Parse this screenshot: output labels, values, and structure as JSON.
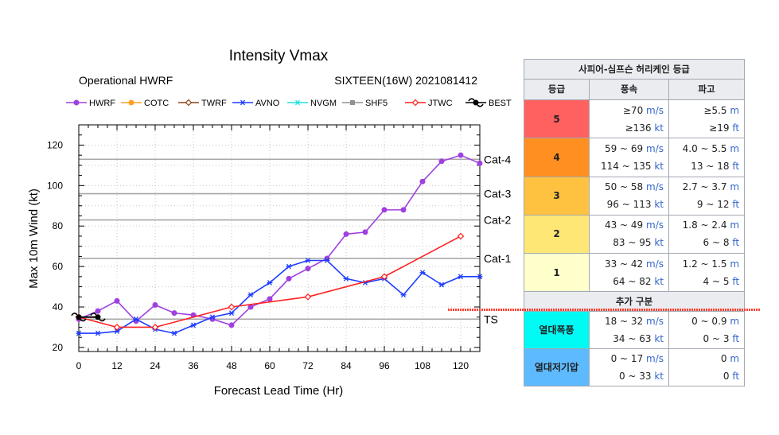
{
  "chart_data": {
    "type": "line",
    "title": "Intensity Vmax",
    "subtitle_left": "Operational HWRF",
    "subtitle_right": "SIXTEEN(16W) 2021081412",
    "xlabel": "Forecast Lead Time (Hr)",
    "ylabel": "Max 10m Wind (kt)",
    "xlim": [
      0,
      126
    ],
    "ylim": [
      18,
      130
    ],
    "xticks": [
      0,
      12,
      24,
      36,
      48,
      60,
      72,
      84,
      96,
      108,
      120
    ],
    "yticks": [
      20,
      40,
      60,
      80,
      100,
      120
    ],
    "thresholds": [
      {
        "label": "TS",
        "value": 34
      },
      {
        "label": "Cat-1",
        "value": 64
      },
      {
        "label": "Cat-2",
        "value": 83
      },
      {
        "label": "Cat-3",
        "value": 96
      },
      {
        "label": "Cat-4",
        "value": 113
      }
    ],
    "legend": [
      {
        "name": "HWRF",
        "color": "#a040e0",
        "marker": "circle"
      },
      {
        "name": "COTC",
        "color": "#ffa020",
        "marker": "circle"
      },
      {
        "name": "TWRF",
        "color": "#8b4513",
        "marker": "diamond"
      },
      {
        "name": "AVNO",
        "color": "#1e3cff",
        "marker": "asterisk"
      },
      {
        "name": "NVGM",
        "color": "#20e0e0",
        "marker": "asterisk"
      },
      {
        "name": "SHF5",
        "color": "#909090",
        "marker": "square"
      },
      {
        "name": "JTWC",
        "color": "#ff2020",
        "marker": "diamond"
      },
      {
        "name": "BEST",
        "color": "#000000",
        "marker": "hurricane"
      }
    ],
    "series": [
      {
        "name": "HWRF",
        "color": "#a040e0",
        "marker": "circle",
        "x": [
          0,
          6,
          12,
          18,
          24,
          30,
          36,
          42,
          48,
          54,
          60,
          66,
          72,
          78,
          84,
          90,
          96,
          102,
          108,
          114,
          120,
          126
        ],
        "y": [
          34,
          38,
          43,
          33,
          41,
          37,
          36,
          34,
          31,
          40,
          44,
          54,
          59,
          64,
          76,
          77,
          88,
          88,
          102,
          112,
          115,
          111
        ]
      },
      {
        "name": "AVNO",
        "color": "#1e3cff",
        "marker": "asterisk",
        "x": [
          0,
          6,
          12,
          18,
          24,
          30,
          36,
          42,
          48,
          54,
          60,
          66,
          72,
          78,
          84,
          90,
          96,
          102,
          108,
          114,
          120,
          126
        ],
        "y": [
          27,
          27,
          28,
          34,
          29,
          27,
          31,
          35,
          37,
          46,
          52,
          60,
          63,
          63,
          54,
          52,
          54,
          46,
          57,
          51,
          55,
          55
        ]
      },
      {
        "name": "JTWC",
        "color": "#ff2020",
        "marker": "diamond",
        "x": [
          0,
          12,
          24,
          48,
          72,
          96,
          120
        ],
        "y": [
          35,
          30,
          30,
          40,
          45,
          55,
          75
        ]
      },
      {
        "name": "BEST",
        "color": "#000000",
        "marker": "hurricane",
        "x": [
          0,
          6
        ],
        "y": [
          35,
          35
        ]
      }
    ]
  },
  "table": {
    "title": "사피어-심프슨 허리케인 등급",
    "headers": [
      "등급",
      "풍속",
      "파고"
    ],
    "rows": [
      {
        "cat": "5",
        "ws1": "≥70",
        "wu1": "m/s",
        "ws2": "≥136",
        "wu2": "kt",
        "sg1": "≥5.5",
        "su1": "m",
        "sg2": "≥19",
        "su2": "ft"
      },
      {
        "cat": "4",
        "ws1": "59 ~ 69",
        "wu1": "m/s",
        "ws2": "114 ~ 135",
        "wu2": "kt",
        "sg1": "4.0 ~ 5.5",
        "su1": "m",
        "sg2": "13 ~ 18",
        "su2": "ft"
      },
      {
        "cat": "3",
        "ws1": "50 ~ 58",
        "wu1": "m/s",
        "ws2": "96 ~ 113",
        "wu2": "kt",
        "sg1": "2.7 ~ 3.7",
        "su1": "m",
        "sg2": "9 ~ 12",
        "su2": "ft"
      },
      {
        "cat": "2",
        "ws1": "43 ~ 49",
        "wu1": "m/s",
        "ws2": "83 ~ 95",
        "wu2": "kt",
        "sg1": "1.8 ~ 2.4",
        "su1": "m",
        "sg2": "6 ~ 8",
        "su2": "ft"
      },
      {
        "cat": "1",
        "ws1": "33 ~ 42",
        "wu1": "m/s",
        "ws2": "64 ~ 82",
        "wu2": "kt",
        "sg1": "1.2 ~ 1.5",
        "su1": "m",
        "sg2": "4 ~ 5",
        "su2": "ft"
      }
    ],
    "extra_title": "추가 구분",
    "extra_rows": [
      {
        "cat": "열대폭풍",
        "ws1": "18 ~ 32",
        "wu1": "m/s",
        "ws2": "34 ~ 63",
        "wu2": "kt",
        "sg1": "0 ~ 0.9",
        "su1": "m",
        "sg2": "0 ~ 3",
        "su2": "ft"
      },
      {
        "cat": "열대저기압",
        "ws1": "0 ~ 17",
        "wu1": "m/s",
        "ws2": "0 ~ 33",
        "wu2": "kt",
        "sg1": "0",
        "su1": "m",
        "sg2": "0",
        "su2": "ft"
      }
    ]
  }
}
